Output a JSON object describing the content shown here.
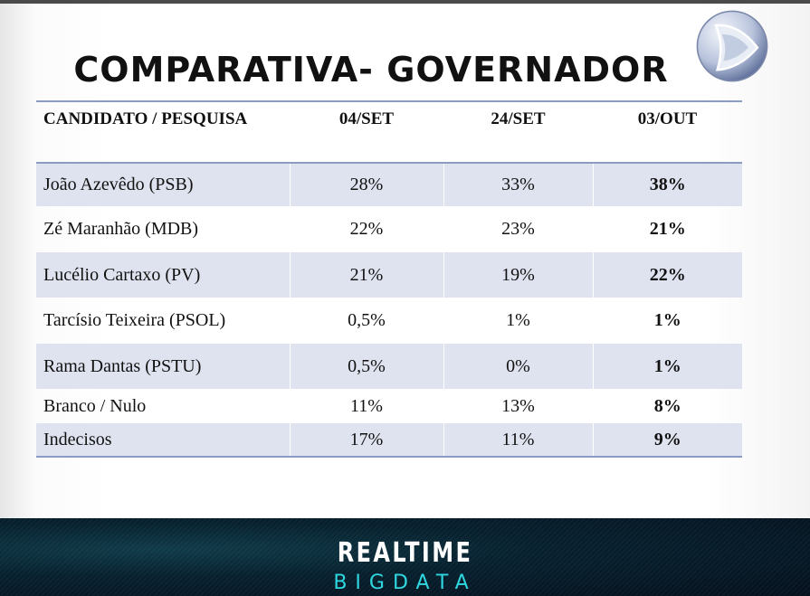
{
  "slide": {
    "title": "COMPARATIVA- GOVERNADOR",
    "logo_icon": "record-tv-logo"
  },
  "table": {
    "headers": [
      "CANDIDATO / PESQUISA",
      "04/SET",
      "24/SET",
      "03/OUT"
    ],
    "rows": [
      [
        "João Azevêdo (PSB)",
        "28%",
        "33%",
        "38%"
      ],
      [
        "Zé Maranhão (MDB)",
        "22%",
        "23%",
        "21%"
      ],
      [
        "Lucélio Cartaxo (PV)",
        "21%",
        "19%",
        "22%"
      ],
      [
        "Tarcísio Teixeira (PSOL)",
        "0,5%",
        "1%",
        "1%"
      ],
      [
        "Rama Dantas (PSTU)",
        "0,5%",
        "0%",
        "1%"
      ],
      [
        "Branco / Nulo",
        "11%",
        "13%",
        "8%"
      ],
      [
        "Indecisos",
        "17%",
        "11%",
        "9%"
      ]
    ]
  },
  "footer": {
    "brand_line1": "REALTIME",
    "brand_line2": "BIGDATA"
  },
  "colors": {
    "row_shade": "#dfe3ef",
    "rule": "#8b9bc3",
    "brand_cyan": "#2fd8e0"
  }
}
